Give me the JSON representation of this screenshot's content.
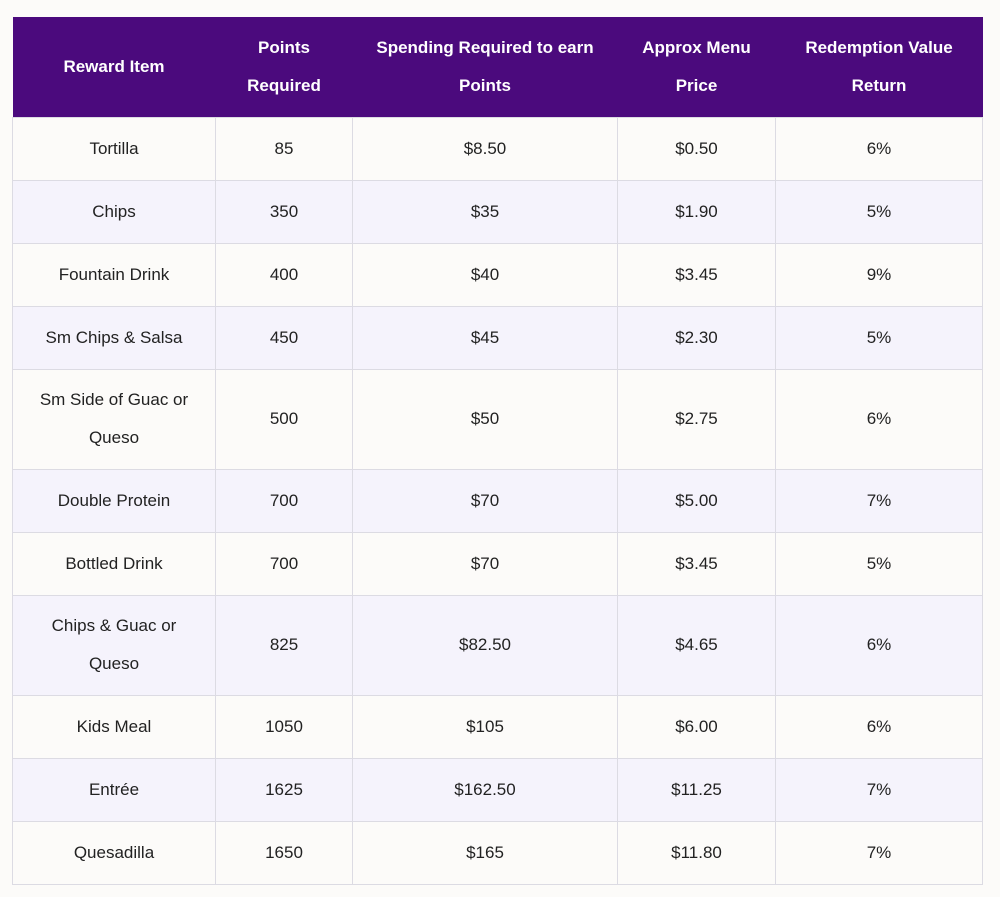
{
  "table": {
    "headers": [
      "Reward Item",
      "Points Required",
      "Spending Required to earn Points",
      "Approx Menu Price",
      "Redemption Value Return"
    ],
    "rows": [
      [
        "Tortilla",
        "85",
        "$8.50",
        "$0.50",
        "6%"
      ],
      [
        "Chips",
        "350",
        "$35",
        "$1.90",
        "5%"
      ],
      [
        "Fountain Drink",
        "400",
        "$40",
        "$3.45",
        "9%"
      ],
      [
        "Sm Chips & Salsa",
        "450",
        "$45",
        "$2.30",
        "5%"
      ],
      [
        "Sm Side of Guac or Queso",
        "500",
        "$50",
        "$2.75",
        "6%"
      ],
      [
        "Double Protein",
        "700",
        "$70",
        "$5.00",
        "7%"
      ],
      [
        "Bottled Drink",
        "700",
        "$70",
        "$3.45",
        "5%"
      ],
      [
        "Chips & Guac or Queso",
        "825",
        "$82.50",
        "$4.65",
        "6%"
      ],
      [
        "Kids Meal",
        "1050",
        "$105",
        "$6.00",
        "6%"
      ],
      [
        "Entrée",
        "1625",
        "$162.50",
        "$11.25",
        "7%"
      ],
      [
        "Quesadilla",
        "1650",
        "$165",
        "$11.80",
        "7%"
      ]
    ]
  },
  "colors": {
    "header_background": "#4b0a7d",
    "header_text": "#ffffff",
    "row_odd": "#fcfbf9",
    "row_even": "#f5f3fc",
    "border": "#dcdbe3"
  }
}
